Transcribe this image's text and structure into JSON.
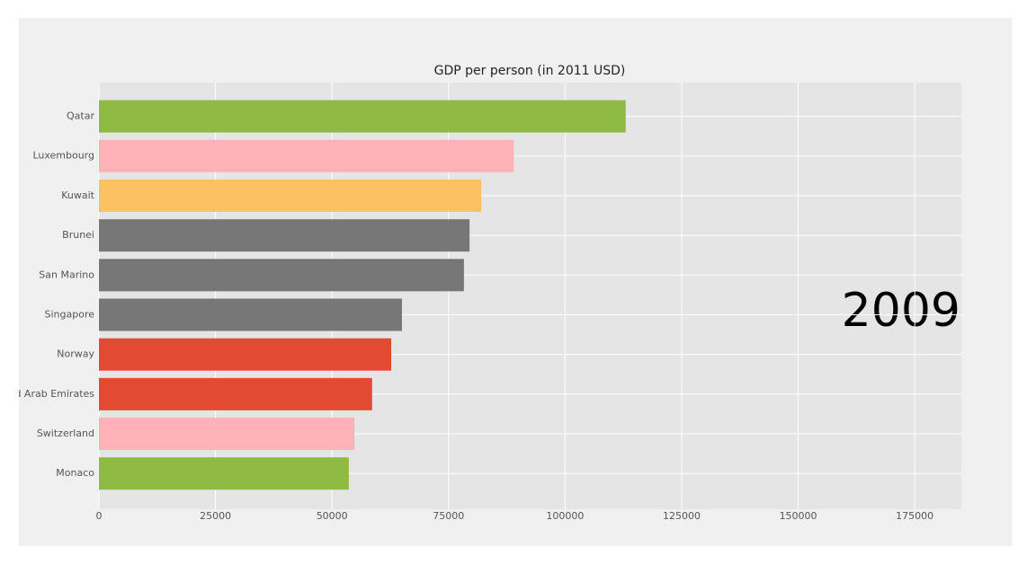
{
  "chart_data": {
    "type": "barh",
    "title": "GDP per person (in 2011 USD)",
    "annotation": "2009",
    "categories": [
      "Qatar",
      "Luxembourg",
      "Kuwait",
      "Brunei",
      "San Marino",
      "Singapore",
      "Norway",
      "United Arab Emirates",
      "Switzerland",
      "Monaco"
    ],
    "values": [
      113000,
      89000,
      82000,
      79500,
      78300,
      65000,
      62700,
      58600,
      54800,
      53600
    ],
    "colors": [
      "#8fbb44",
      "#ffb3b8",
      "#fbc163",
      "#777777",
      "#777777",
      "#777777",
      "#e24a33",
      "#e24a33",
      "#ffb3b8",
      "#8fbb44"
    ],
    "xlim": [
      0,
      185000
    ],
    "xticks": [
      0,
      25000,
      50000,
      75000,
      100000,
      125000,
      150000,
      175000
    ],
    "grid": true
  }
}
